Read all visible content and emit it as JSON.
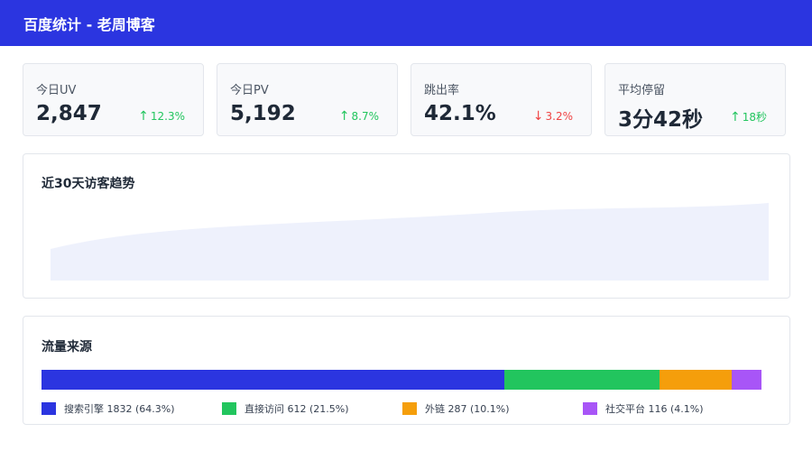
{
  "header": {
    "title": "百度统计 - 老周博客"
  },
  "stats": [
    {
      "label": "今日UV",
      "value": "2,847",
      "delta": "12.3%",
      "direction": "up",
      "color": "#22c55e"
    },
    {
      "label": "今日PV",
      "value": "5,192",
      "delta": "8.7%",
      "direction": "up",
      "color": "#22c55e"
    },
    {
      "label": "跳出率",
      "value": "42.1%",
      "delta": "3.2%",
      "direction": "down",
      "color": "#ef4444"
    },
    {
      "label": "平均停留",
      "value": "3分42秒",
      "delta": "18秒",
      "direction": "up",
      "color": "#22c55e"
    }
  ],
  "arrows": {
    "up": "↑",
    "down": "↓"
  },
  "trend": {
    "title": "近30天访客趋势",
    "fill_color": "#eef1fc"
  },
  "sources": {
    "title": "流量来源",
    "items": [
      {
        "name": "搜索引擎",
        "count": 1832,
        "percent": 64.3,
        "label": "搜索引擎 1832 (64.3%)",
        "color": "#2b35e0"
      },
      {
        "name": "直接访问",
        "count": 612,
        "percent": 21.5,
        "label": "直接访问 612 (21.5%)",
        "color": "#22c55e"
      },
      {
        "name": "外链",
        "count": 287,
        "percent": 10.1,
        "label": "外链 287 (10.1%)",
        "color": "#f59e0b"
      },
      {
        "name": "社交平台",
        "count": 116,
        "percent": 4.1,
        "label": "社交平台 116 (4.1%)",
        "color": "#a855f7"
      }
    ]
  }
}
